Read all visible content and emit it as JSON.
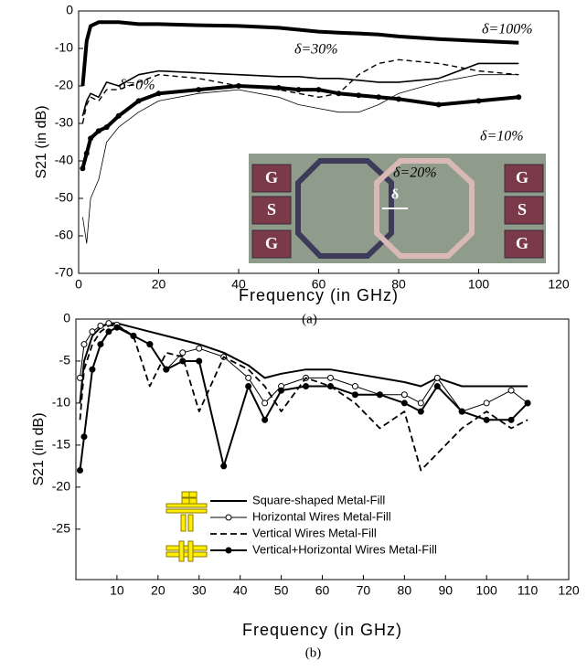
{
  "chart_data": [
    {
      "type": "line",
      "caption": "(a)",
      "x_label": "Frequency (in GHz)",
      "y_label": "S21 (in dB)",
      "xlim": [
        0,
        120
      ],
      "xticks": [
        0,
        20,
        40,
        60,
        80,
        100,
        120
      ],
      "ylim": [
        -70,
        0
      ],
      "yticks": [
        0,
        -10,
        -20,
        -30,
        -40,
        -50,
        -60,
        -70
      ],
      "x": [
        1,
        2,
        3,
        5,
        7,
        10,
        15,
        20,
        30,
        40,
        50,
        55,
        60,
        65,
        70,
        75,
        80,
        90,
        100,
        110
      ],
      "series": [
        {
          "name": "δ=100%",
          "color": "#000000",
          "values": [
            -20,
            -8,
            -4,
            -3,
            -3,
            -3,
            -3.5,
            -3.5,
            -3.8,
            -4,
            -4.5,
            -5,
            -5.5,
            -5.8,
            -6,
            -6.3,
            -6.8,
            -7.5,
            -8,
            -8.5
          ]
        },
        {
          "name": "δ=30%",
          "color": "#000000",
          "values": [
            -30,
            -25,
            -23,
            -24,
            -21,
            -21,
            -19,
            -17,
            -18,
            -20,
            -21,
            -22,
            -23,
            -22,
            -17,
            -14,
            -13,
            -14,
            -16,
            -17
          ]
        },
        {
          "name": "δ=0%",
          "color": "#000000",
          "values": [
            -28,
            -24,
            -22,
            -23,
            -19,
            -20,
            -17,
            -16,
            -16.5,
            -17,
            -17.5,
            -17.5,
            -18,
            -18,
            -18.5,
            -19,
            -19,
            -18,
            -14,
            -14
          ]
        },
        {
          "name": "δ=10%",
          "color": "#000000",
          "values": [
            -42,
            -38,
            -34,
            -32,
            -31,
            -28,
            -24,
            -22,
            -21,
            -20,
            -20.5,
            -21,
            -21,
            -22,
            -22.5,
            -23,
            -23.5,
            -25,
            -24,
            -23
          ]
        },
        {
          "name": "δ=20%",
          "color": "#000000",
          "values": [
            -55,
            -62,
            -50,
            -45,
            -35,
            -31,
            -27,
            -24,
            -22,
            -21,
            -23,
            -25,
            -26,
            -27,
            -27,
            -25,
            -22,
            -19,
            -17,
            -17
          ]
        }
      ],
      "inset_labels": [
        "G",
        "S",
        "G",
        "G",
        "S",
        "G",
        "δ"
      ]
    },
    {
      "type": "line",
      "caption": "(b)",
      "x_label": "Frequency (in GHz)",
      "y_label": "S21 (in dB)",
      "xlim": [
        0,
        120
      ],
      "xticks": [
        10,
        20,
        30,
        40,
        50,
        60,
        70,
        80,
        90,
        100,
        110,
        120
      ],
      "ylim": [
        -31,
        0
      ],
      "yticks": [
        0,
        -5,
        -10,
        -15,
        -20,
        -25
      ],
      "x": [
        1,
        2,
        4,
        6,
        8,
        10,
        14,
        18,
        22,
        26,
        30,
        36,
        42,
        46,
        50,
        56,
        62,
        68,
        74,
        80,
        84,
        88,
        94,
        100,
        106,
        110
      ],
      "series": [
        {
          "name": "Square-shaped Metal-Fill",
          "color": "#000000",
          "values": [
            -10,
            -5,
            -2,
            -1,
            -0.5,
            -0.5,
            -1,
            -1.5,
            -2,
            -2.5,
            -3,
            -4,
            -5.5,
            -7,
            -6.5,
            -6,
            -6,
            -6.5,
            -7,
            -7.5,
            -8,
            -7,
            -8,
            -8,
            -8,
            -8
          ]
        },
        {
          "name": "Horizontal Wires Metal-Fill",
          "color": "#000000",
          "values": [
            -7,
            -3,
            -1.5,
            -0.8,
            -0.5,
            -0.7,
            -2,
            -3,
            -6,
            -4,
            -3.5,
            -4.5,
            -7,
            -10,
            -8,
            -7,
            -7,
            -8,
            -9,
            -9,
            -10,
            -7,
            -11,
            -10,
            -8.5,
            -10
          ]
        },
        {
          "name": "Vertical Wires Metal-Fill",
          "color": "#000000",
          "values": [
            -12,
            -6,
            -3,
            -1.5,
            -0.8,
            -0.7,
            -2,
            -8,
            -4,
            -4.5,
            -11,
            -4.5,
            -6,
            -8,
            -11,
            -7,
            -8,
            -10,
            -13,
            -11,
            -18,
            -16,
            -13,
            -11,
            -13,
            -12
          ]
        },
        {
          "name": "Vertical+Horizontal Wires Metal-Fill",
          "color": "#000000",
          "values": [
            -18,
            -14,
            -6,
            -3,
            -1.5,
            -1,
            -2,
            -3,
            -6,
            -5,
            -5,
            -17.5,
            -8,
            -12,
            -8.5,
            -8,
            -8,
            -9,
            -9,
            -10,
            -11,
            -8,
            -11,
            -12,
            -12,
            -10
          ]
        }
      ]
    }
  ]
}
